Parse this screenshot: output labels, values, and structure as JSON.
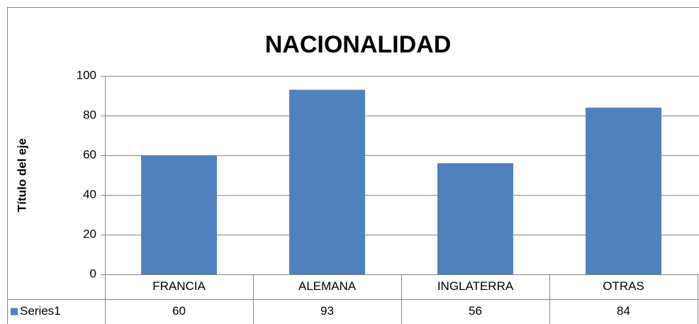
{
  "chart_data": {
    "type": "bar",
    "title": "NACIONALIDAD",
    "y_axis_label": "Título del eje",
    "categories": [
      "FRANCIA",
      "ALEMANA",
      "INGLATERRA",
      "OTRAS"
    ],
    "series": [
      {
        "name": "Series1",
        "color": "#4f81bd",
        "values": [
          60,
          93,
          56,
          84
        ]
      }
    ],
    "ylim": [
      0,
      100
    ],
    "yticks": [
      0,
      20,
      40,
      60,
      80,
      100
    ],
    "grid": true,
    "data_table": true
  }
}
